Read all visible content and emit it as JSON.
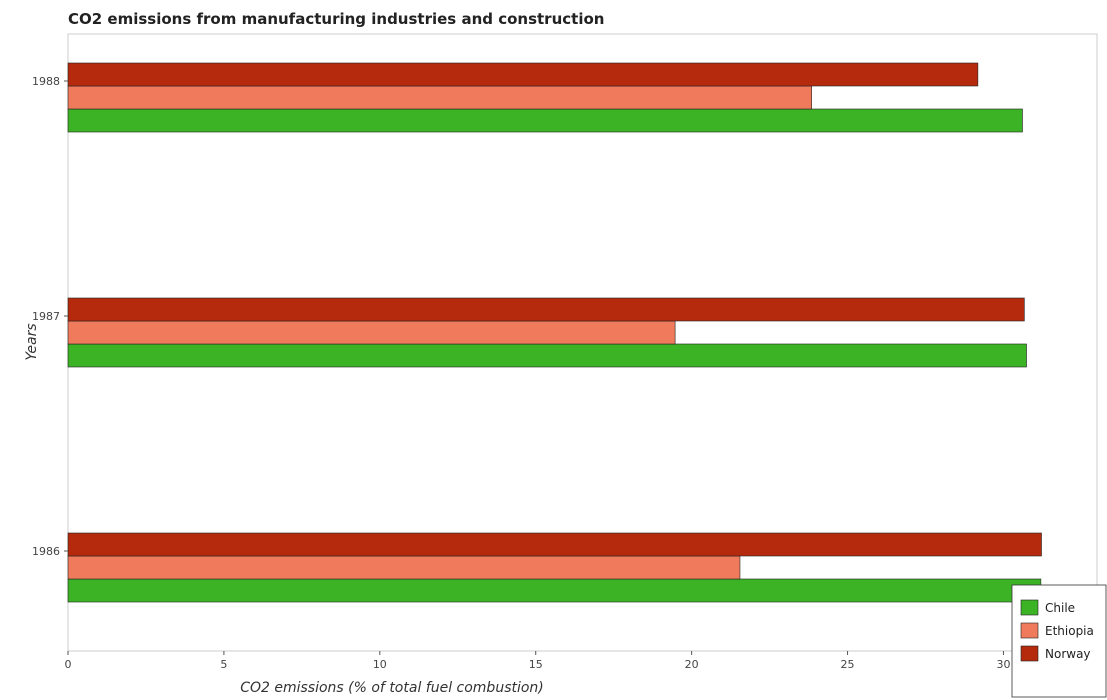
{
  "chart_data": {
    "type": "bar",
    "orientation": "horizontal",
    "title": "CO2 emissions from manufacturing industries and construction",
    "xlabel": "CO2 emissions (% of total fuel combustion)",
    "ylabel": "Years",
    "categories": [
      "1986",
      "1987",
      "1988"
    ],
    "xlim": [
      0,
      33
    ],
    "xticks": [
      0,
      5,
      10,
      15,
      20,
      25,
      30
    ],
    "series": [
      {
        "name": "Chile",
        "color": "#3cb325",
        "values": [
          31.2,
          30.74,
          30.61
        ]
      },
      {
        "name": "Ethiopia",
        "color": "#f07a5c",
        "values": [
          21.55,
          19.47,
          23.85
        ]
      },
      {
        "name": "Norway",
        "color": "#b52a0c",
        "values": [
          31.22,
          30.67,
          29.18
        ]
      }
    ],
    "legend_position": "bottom-right",
    "grid": false
  }
}
